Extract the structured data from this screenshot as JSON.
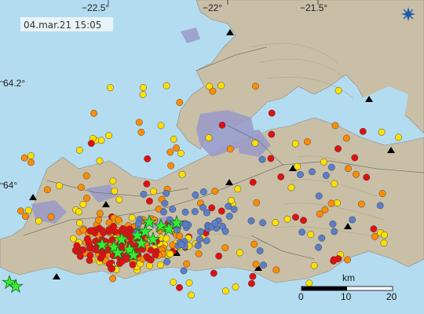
{
  "timestamp": "04.mar.21  15:05",
  "longitude_labels": [
    "−22.5°",
    "−22°",
    "−21.5°"
  ],
  "latitude_labels": [
    "64.2°",
    "64°"
  ],
  "scale": {
    "unit": "km",
    "ticks": [
      "0",
      "10",
      "20"
    ]
  },
  "colors": {
    "sea": "#b4dcf0",
    "land": "#c9bfa7",
    "lava": "#9a9ac8",
    "quake_recent": "#e01010",
    "quake_hours": "#ff8c00",
    "quake_day": "#ffe000",
    "quake_older": "#5a7ec8",
    "large_quake_star": "#33ee33"
  },
  "icons": {
    "logo": "compass-star-logo",
    "summit": "black-triangle"
  }
}
